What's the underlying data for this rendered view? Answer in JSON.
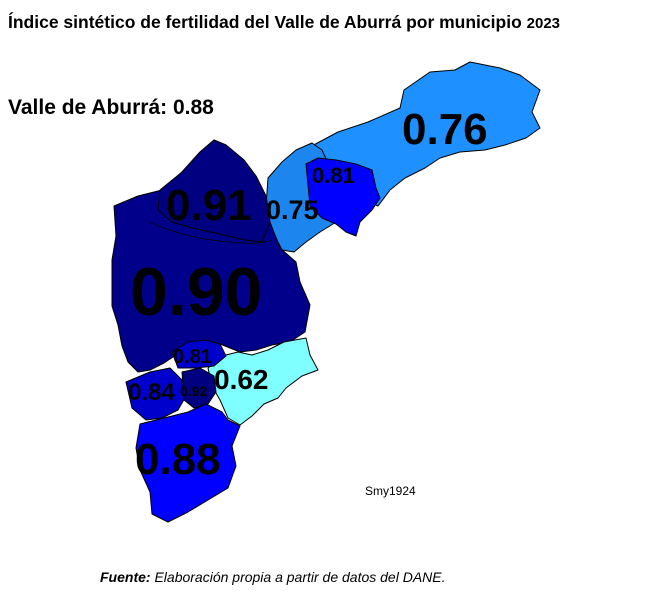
{
  "title": {
    "main": "Índice sintético de fertilidad del Valle de Aburrá por municipio",
    "year": "2023"
  },
  "summary": {
    "label": "Valle de Aburrá:",
    "value": "0.88"
  },
  "map": {
    "regions": [
      {
        "id": "north-east",
        "value": "0.76",
        "color": "#1E90FF"
      },
      {
        "id": "north-mid",
        "value": "0.81",
        "color": "#0000FF"
      },
      {
        "id": "north-west",
        "value": "0.75",
        "color": "#1C86EE"
      },
      {
        "id": "north-upper",
        "value": "0.91",
        "color": "#000080"
      },
      {
        "id": "central",
        "value": "0.90",
        "color": "#00008B"
      },
      {
        "id": "south-east",
        "value": "0.62",
        "color": "#7FFFFF"
      },
      {
        "id": "south-mid-upper",
        "value": "0.81",
        "color": "#0000CD"
      },
      {
        "id": "south-mid-west",
        "value": "0.84",
        "color": "#0000CD"
      },
      {
        "id": "south-mid-small",
        "value": "0.92",
        "color": "#000080"
      },
      {
        "id": "south",
        "value": "0.88",
        "color": "#0000FF"
      }
    ]
  },
  "watermark": "Smy1924",
  "source": {
    "label": "Fuente:",
    "text": "Elaboración propia a partir de datos del DANE."
  }
}
